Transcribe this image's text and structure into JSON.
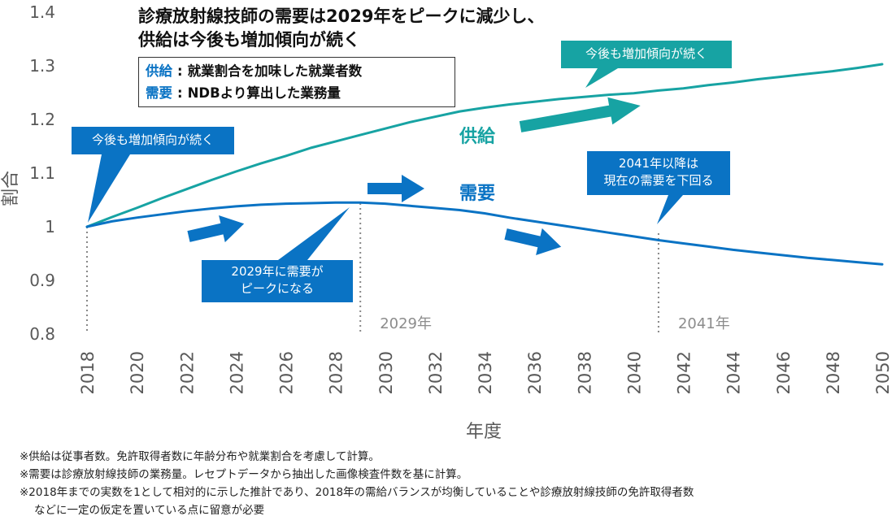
{
  "chart_data": {
    "type": "line",
    "title": [
      "診療放射線技師の需要は2029年をピークに減少し、",
      "供給は今後も増加傾向が続く"
    ],
    "ylabel": "割合",
    "xlabel": "年度",
    "ylim": [
      0.8,
      1.4
    ],
    "yticks": [
      "0.8",
      "0.9",
      "1",
      "1.1",
      "1.2",
      "1.3",
      "1.4"
    ],
    "xticks": [
      "2018",
      "2020",
      "2022",
      "2024",
      "2026",
      "2028",
      "2030",
      "2032",
      "2034",
      "2036",
      "2038",
      "2040",
      "2042",
      "2044",
      "2046",
      "2048",
      "2050"
    ],
    "series": [
      {
        "name": "供給",
        "color": "#17a3a3",
        "points": [
          [
            2018,
            1.0
          ],
          [
            2019,
            1.018
          ],
          [
            2020,
            1.035
          ],
          [
            2021,
            1.053
          ],
          [
            2022,
            1.07
          ],
          [
            2023,
            1.087
          ],
          [
            2024,
            1.103
          ],
          [
            2025,
            1.118
          ],
          [
            2026,
            1.132
          ],
          [
            2027,
            1.147
          ],
          [
            2028,
            1.159
          ],
          [
            2029,
            1.171
          ],
          [
            2030,
            1.183
          ],
          [
            2031,
            1.195
          ],
          [
            2032,
            1.205
          ],
          [
            2033,
            1.215
          ],
          [
            2034,
            1.222
          ],
          [
            2035,
            1.228
          ],
          [
            2036,
            1.233
          ],
          [
            2037,
            1.238
          ],
          [
            2038,
            1.242
          ],
          [
            2039,
            1.246
          ],
          [
            2040,
            1.249
          ],
          [
            2041,
            1.254
          ],
          [
            2042,
            1.258
          ],
          [
            2043,
            1.264
          ],
          [
            2044,
            1.269
          ],
          [
            2045,
            1.275
          ],
          [
            2046,
            1.28
          ],
          [
            2047,
            1.285
          ],
          [
            2048,
            1.29
          ],
          [
            2049,
            1.296
          ],
          [
            2050,
            1.303
          ]
        ]
      },
      {
        "name": "需要",
        "color": "#0a73c4",
        "points": [
          [
            2018,
            1.0
          ],
          [
            2019,
            1.01
          ],
          [
            2020,
            1.017
          ],
          [
            2021,
            1.023
          ],
          [
            2022,
            1.029
          ],
          [
            2023,
            1.034
          ],
          [
            2024,
            1.038
          ],
          [
            2025,
            1.041
          ],
          [
            2026,
            1.043
          ],
          [
            2027,
            1.044
          ],
          [
            2028,
            1.045
          ],
          [
            2029,
            1.045
          ],
          [
            2030,
            1.043
          ],
          [
            2031,
            1.039
          ],
          [
            2032,
            1.035
          ],
          [
            2033,
            1.031
          ],
          [
            2034,
            1.025
          ],
          [
            2035,
            1.017
          ],
          [
            2036,
            1.01
          ],
          [
            2037,
            1.003
          ],
          [
            2038,
            0.996
          ],
          [
            2039,
            0.989
          ],
          [
            2040,
            0.982
          ],
          [
            2041,
            0.975
          ],
          [
            2042,
            0.969
          ],
          [
            2043,
            0.963
          ],
          [
            2044,
            0.957
          ],
          [
            2045,
            0.952
          ],
          [
            2046,
            0.947
          ],
          [
            2047,
            0.942
          ],
          [
            2048,
            0.938
          ],
          [
            2049,
            0.934
          ],
          [
            2050,
            0.93
          ]
        ]
      }
    ],
    "reference_lines": [
      {
        "x": 2018,
        "label": ""
      },
      {
        "x": 2029,
        "label": "2029年"
      },
      {
        "x": 2041,
        "label": "2041年"
      }
    ]
  },
  "legend_box": {
    "lines": [
      {
        "key": "供給",
        "sep": ":",
        "text": "就業割合を加味した就業者数"
      },
      {
        "key": "需要",
        "sep": ":",
        "text": "NDBより算出した業務量"
      }
    ]
  },
  "series_labels": {
    "supply": "供給",
    "demand": "需要"
  },
  "callouts": {
    "supply_right": "今後も増加傾向が続く",
    "supply_left": "今後も増加傾向が続く",
    "peak": [
      "2029年に需要が",
      "ピークになる"
    ],
    "after2041": [
      "2041年以降は",
      "現在の需要を下回る"
    ]
  },
  "colors": {
    "teal": "#17a3a3",
    "blue": "#0a73c4",
    "grid": "#888888",
    "axis_text": "#595959"
  },
  "notes": [
    "※供給は従事者数。免許取得者数に年齢分布や就業割合を考慮して計算。",
    "※需要は診療放射線技師の業務量。レセプトデータから抽出した画像検査件数を基に計算。",
    "※2018年までの実数を1として相対的に示した推計であり、2018年の需給バランスが均衡していることや診療放射線技師の免許取得者数",
    "などに一定の仮定を置いている点に留意が必要"
  ]
}
